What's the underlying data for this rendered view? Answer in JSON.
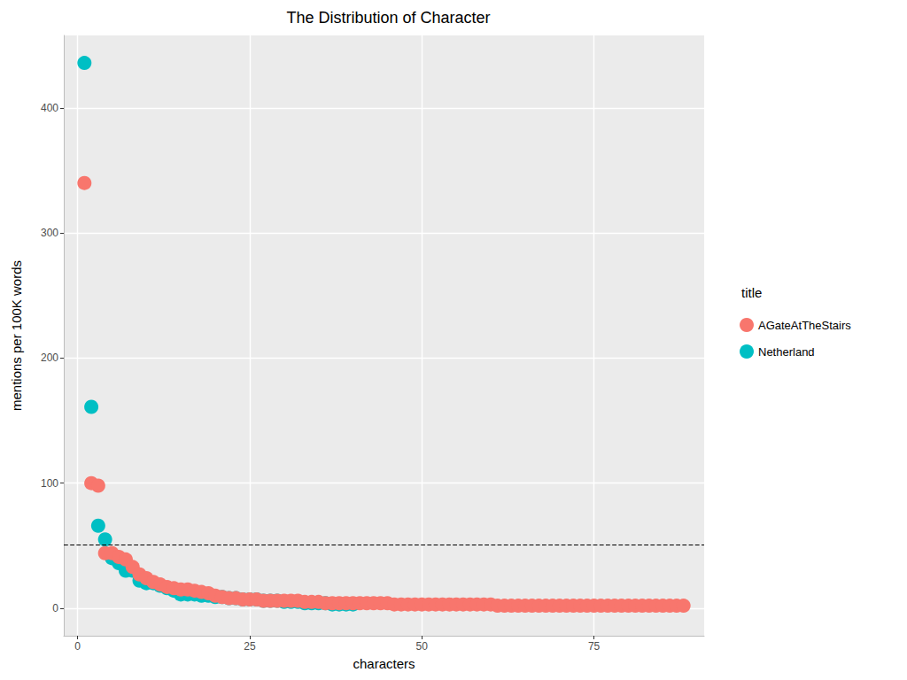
{
  "chart_data": {
    "type": "scatter",
    "title": "The Distribution of Character",
    "x_label": "characters",
    "y_label": "mentions per 100K words",
    "legend_title": "title",
    "legend": "right",
    "grid": true,
    "marker": "circle",
    "xlim": [
      -2,
      91
    ],
    "xticks": [
      0,
      25,
      50,
      75
    ],
    "ylim": [
      -22,
      458
    ],
    "yticks": [
      0,
      100,
      200,
      300,
      400
    ],
    "reference_line": {
      "y": 51,
      "line_style": "dashed"
    },
    "series": [
      {
        "name": "AGateAtTheStairs",
        "color": "#F8766D",
        "x": [
          1,
          2,
          3,
          4,
          5,
          6,
          7,
          8,
          9,
          10,
          11,
          12,
          13,
          14,
          15,
          16,
          17,
          18,
          19,
          20,
          21,
          22,
          23,
          24,
          25,
          26,
          27,
          28,
          29,
          30,
          31,
          32,
          33,
          34,
          35,
          36,
          37,
          38,
          39,
          40,
          41,
          42,
          43,
          44,
          45,
          46,
          47,
          48,
          49,
          50,
          51,
          52,
          53,
          54,
          55,
          56,
          57,
          58,
          59,
          60,
          61,
          62,
          63,
          64,
          65,
          66,
          67,
          68,
          69,
          70,
          71,
          72,
          73,
          74,
          75,
          76,
          77,
          78,
          79,
          80,
          81,
          82,
          83,
          84,
          85,
          86,
          87,
          88
        ],
        "values": [
          340,
          100,
          98,
          44,
          44,
          41,
          39,
          33,
          27,
          24,
          21,
          19,
          17,
          16,
          15,
          15,
          14,
          13,
          12,
          10,
          9,
          8,
          8,
          7,
          7,
          7,
          6,
          6,
          6,
          6,
          6,
          6,
          5,
          5,
          5,
          4,
          4,
          4,
          4,
          4,
          4,
          4,
          4,
          4,
          4,
          3,
          3,
          3,
          3,
          3,
          3,
          3,
          3,
          3,
          3,
          3,
          3,
          3,
          3,
          3,
          2,
          2,
          2,
          2,
          2,
          2,
          2,
          2,
          2,
          2,
          2,
          2,
          2,
          2,
          2,
          2,
          2,
          2,
          2,
          2,
          2,
          2,
          2,
          2,
          2,
          2,
          2,
          2
        ]
      },
      {
        "name": "Netherland",
        "color": "#00BFC4",
        "x": [
          1,
          2,
          3,
          4,
          5,
          6,
          7,
          8,
          9,
          10,
          11,
          12,
          13,
          14,
          15,
          16,
          17,
          18,
          19,
          20,
          21,
          22,
          23,
          24,
          25,
          26,
          27,
          28,
          29,
          30,
          31,
          32,
          33,
          34,
          35,
          36,
          37,
          38,
          39,
          40
        ],
        "values": [
          436,
          161,
          66,
          55,
          40,
          36,
          30,
          30,
          22,
          20,
          20,
          18,
          16,
          14,
          11,
          11,
          11,
          10,
          10,
          9,
          9,
          8,
          8,
          7,
          7,
          7,
          6,
          6,
          6,
          5,
          5,
          5,
          4,
          4,
          4,
          4,
          3,
          3,
          3,
          3
        ]
      }
    ]
  }
}
